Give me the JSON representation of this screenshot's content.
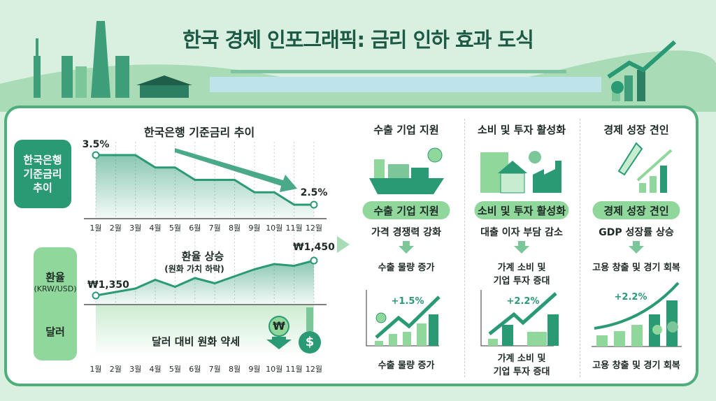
{
  "title": "한국 경제 인포그래픽: 금리 인하 효과 도식",
  "rate_panel": {
    "heading": "한국은행 기준금리 추이",
    "side_label": [
      "한국은행",
      "기준금리",
      "추이"
    ],
    "start_label": "3.5%",
    "end_label": "2.5%"
  },
  "fx_panel": {
    "side_label_top": "환율",
    "side_label_unit": "(KRW/USD)",
    "side_label_bottom": "달러",
    "heading": "환율 상승",
    "subheading": "(원화 가치 하락)",
    "start_label": "₩1,350",
    "end_label": "₩1,450",
    "bottom_text": "달러 대비 원화 약세",
    "won_symbol": "₩",
    "dollar_symbol": "$"
  },
  "months": [
    "1월",
    "2월",
    "3월",
    "4월",
    "5월",
    "6월",
    "7월",
    "8월",
    "9월",
    "10월",
    "11월",
    "12월"
  ],
  "chart_data": [
    {
      "type": "line",
      "title": "한국은행 기준금리 추이",
      "categories": [
        "1월",
        "2월",
        "3월",
        "4월",
        "5월",
        "6월",
        "7월",
        "8월",
        "9월",
        "10월",
        "11월",
        "12월"
      ],
      "values": [
        3.5,
        3.5,
        3.5,
        3.25,
        3.25,
        3.0,
        3.0,
        3.0,
        2.75,
        2.75,
        2.5,
        2.5
      ],
      "ylabel": "%"
    },
    {
      "type": "line",
      "title": "환율 상승",
      "categories": [
        "1월",
        "2월",
        "3월",
        "4월",
        "5월",
        "6월",
        "7월",
        "8월",
        "9월",
        "10월",
        "11월",
        "12월"
      ],
      "values": [
        1350,
        1360,
        1370,
        1395,
        1375,
        1400,
        1385,
        1405,
        1425,
        1440,
        1435,
        1450
      ],
      "ylabel": "KRW/USD"
    }
  ],
  "columns": [
    {
      "heading": "수출 기업 지원",
      "pill": "수출 기업 지원",
      "line1": "가격 경쟁력 강화",
      "result": [
        "수출 물량 증가"
      ],
      "growth": "+1.5%",
      "caption": [
        "수출 물량 증가"
      ],
      "badge": "₩"
    },
    {
      "heading": "소비 및 투자 활성화",
      "pill": "소비 및 투자 활성화",
      "line1": "대출 이자 부담 감소",
      "result": [
        "가계 소비 및",
        "기업 투자 증대"
      ],
      "growth": "+2.2%",
      "caption": [
        "가계 소비 및",
        "기업 투자 증대"
      ],
      "badge": "$"
    },
    {
      "heading": "경제 성장 견인",
      "pill": "경제 성장 견인",
      "line1": "GDP 성장률 상승",
      "result": [
        "고용 창출 및 경기 회복"
      ],
      "growth": "+2.2%",
      "caption": [
        "고용 창출 및 경기 회복"
      ]
    }
  ],
  "colors": {
    "dark_green": "#2a9a74",
    "light_green": "#8fd79a",
    "title": "#1d5a45"
  }
}
